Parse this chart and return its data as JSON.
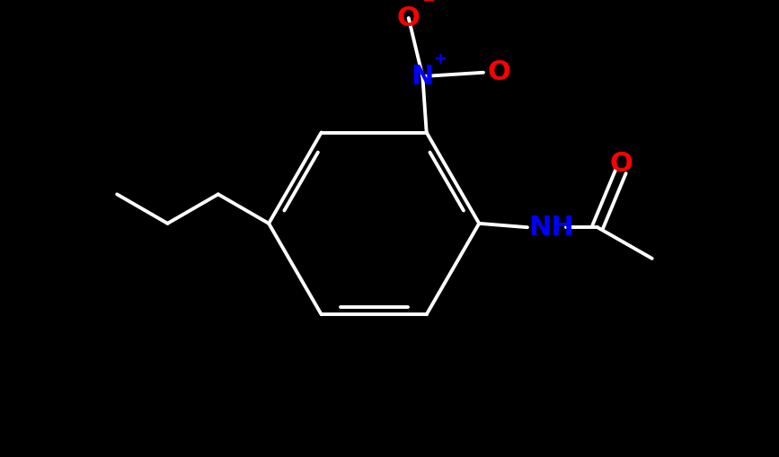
{
  "background_color": "#000000",
  "bond_color": "#ffffff",
  "bond_width": 2.8,
  "atom_colors": {
    "O": "#ff0000",
    "N": "#0000ff",
    "C": "#ffffff",
    "H": "#ffffff"
  },
  "font_size_atoms": 20,
  "font_size_charge": 13,
  "fig_width": 8.67,
  "fig_height": 5.09,
  "xlim": [
    0,
    10
  ],
  "ylim": [
    0,
    5.87
  ]
}
